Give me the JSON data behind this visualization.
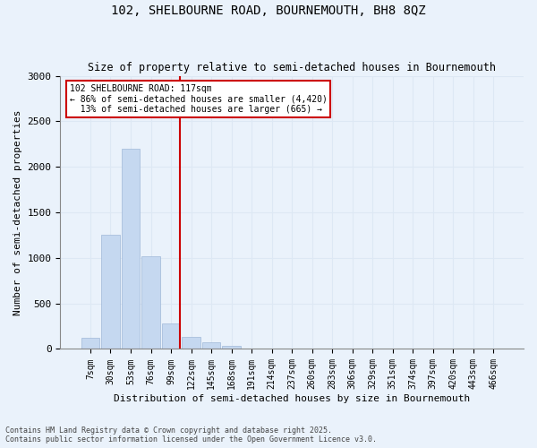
{
  "title_line1": "102, SHELBOURNE ROAD, BOURNEMOUTH, BH8 8QZ",
  "title_line2": "Size of property relative to semi-detached houses in Bournemouth",
  "xlabel": "Distribution of semi-detached houses by size in Bournemouth",
  "ylabel": "Number of semi-detached properties",
  "footer_line1": "Contains HM Land Registry data © Crown copyright and database right 2025.",
  "footer_line2": "Contains public sector information licensed under the Open Government Licence v3.0.",
  "bin_labels": [
    "7sqm",
    "30sqm",
    "53sqm",
    "76sqm",
    "99sqm",
    "122sqm",
    "145sqm",
    "168sqm",
    "191sqm",
    "214sqm",
    "237sqm",
    "260sqm",
    "283sqm",
    "306sqm",
    "329sqm",
    "351sqm",
    "374sqm",
    "397sqm",
    "420sqm",
    "443sqm",
    "466sqm"
  ],
  "bar_heights": [
    120,
    1250,
    2200,
    1020,
    280,
    130,
    70,
    30,
    0,
    0,
    5,
    0,
    0,
    0,
    0,
    0,
    0,
    0,
    0,
    0,
    0
  ],
  "bar_color": "#c5d8f0",
  "bar_edge_color": "#a0b8d8",
  "grid_color": "#dde8f4",
  "background_color": "#eaf2fb",
  "annotation_text": "102 SHELBOURNE ROAD: 117sqm\n← 86% of semi-detached houses are smaller (4,420)\n  13% of semi-detached houses are larger (665) →",
  "vline_x_index": 4.43,
  "vline_color": "#cc0000",
  "annotation_box_color": "#ffffff",
  "annotation_box_edge": "#cc0000",
  "ylim": [
    0,
    3000
  ],
  "yticks": [
    0,
    500,
    1000,
    1500,
    2000,
    2500,
    3000
  ]
}
